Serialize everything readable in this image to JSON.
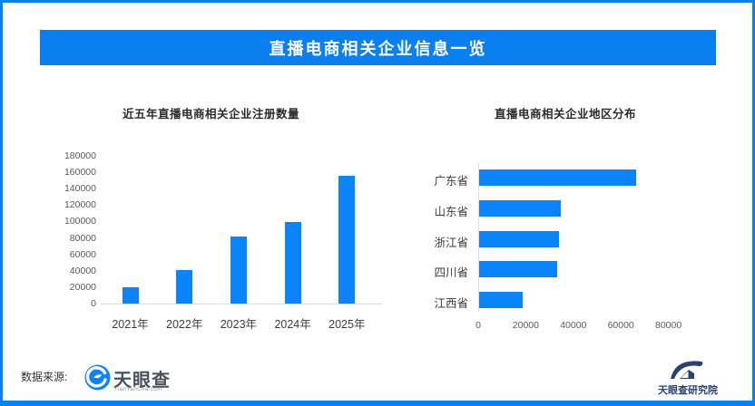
{
  "page": {
    "header_title": "直播电商相关企业信息一览",
    "footer": {
      "source_label": "数据来源:",
      "tyc_logo_text": "天眼查",
      "tyc_logo_sub": "TianYanCha.com",
      "research_logo_text": "天眼查研究院"
    },
    "colors": {
      "accent_blue": "#0a84f8",
      "header_blue": "#0a80f0",
      "logo_navy": "#2a4272",
      "axis_gray": "#dcdcdc"
    }
  },
  "chart_data": [
    {
      "type": "bar",
      "title": "近五年直播电商相关企业注册数量",
      "categories": [
        "2021年",
        "2022年",
        "2023年",
        "2024年",
        "2025年"
      ],
      "values": [
        19800,
        41000,
        82000,
        99000,
        156000
      ],
      "xlabel": "",
      "ylabel": "",
      "ylim": [
        0,
        180000
      ],
      "yticks": [
        0,
        20000,
        40000,
        60000,
        80000,
        100000,
        120000,
        140000,
        160000,
        180000
      ],
      "grid": false,
      "legend": "none",
      "bar_color": "#0a84f8"
    },
    {
      "type": "bar-horizontal",
      "title": "直播电商相关企业地区分布",
      "categories": [
        "广东省",
        "山东省",
        "浙江省",
        "四川省",
        "江西省"
      ],
      "values": [
        66000,
        34500,
        33500,
        33000,
        18200
      ],
      "xlabel": "",
      "ylabel": "",
      "xlim": [
        0,
        80000
      ],
      "xticks": [
        0,
        20000,
        40000,
        60000,
        80000
      ],
      "grid": false,
      "legend": "none",
      "bar_color": "#0a84f8"
    }
  ]
}
